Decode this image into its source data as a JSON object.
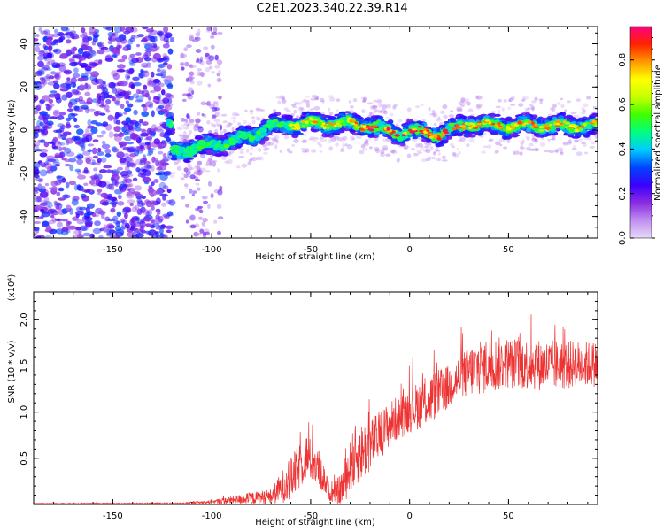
{
  "title": "C2E1.2023.340.22.39.R14",
  "chart_data": [
    {
      "type": "heatmap",
      "xlabel": "Height of straight line (km)",
      "ylabel": "Frequency (Hz)",
      "xlim": [
        -190,
        95
      ],
      "ylim": [
        -50,
        48
      ],
      "xticks": [
        -150,
        -100,
        -50,
        0,
        50
      ],
      "yticks": [
        -40,
        -20,
        0,
        20,
        40
      ],
      "colorbar": {
        "label": "Normalized spectral amplitude",
        "range": [
          0.0,
          0.95
        ],
        "ticks": [
          0.0,
          0.2,
          0.4,
          0.6,
          0.8
        ],
        "tick_labels": [
          "0.0",
          "0.2",
          "0.4",
          "0.6",
          "0.8"
        ],
        "colormap": [
          "#e8d8f8",
          "#c090f0",
          "#8a2be2",
          "#3a00ff",
          "#0044ff",
          "#00ccff",
          "#00ff80",
          "#40ff00",
          "#c8ff00",
          "#ffff00",
          "#ff9900",
          "#ff2200",
          "#ff0080"
        ]
      },
      "ridge_center_hz": [
        {
          "x": -120,
          "y": -10
        },
        {
          "x": -100,
          "y": -7
        },
        {
          "x": -80,
          "y": -3
        },
        {
          "x": -70,
          "y": 2
        },
        {
          "x": -55,
          "y": 3
        },
        {
          "x": -30,
          "y": 3
        },
        {
          "x": -15,
          "y": 1
        },
        {
          "x": -5,
          "y": -2
        },
        {
          "x": 0,
          "y": 0
        },
        {
          "x": 15,
          "y": -2
        },
        {
          "x": 30,
          "y": 3
        },
        {
          "x": 50,
          "y": 2
        },
        {
          "x": 70,
          "y": 2
        },
        {
          "x": 95,
          "y": 2
        }
      ]
    },
    {
      "type": "line",
      "xlabel": "Height of straight line (km)",
      "ylabel": "SNR (10 * v/v)",
      "y_multiplier": "(x10⁴)",
      "xlim": [
        -190,
        95
      ],
      "ylim": [
        0,
        2.3
      ],
      "xticks": [
        -150,
        -100,
        -50,
        0,
        50
      ],
      "yticks": [
        0.5,
        1.0,
        1.5,
        2.0
      ],
      "ytick_labels": [
        "0.5",
        "1.0",
        "1.5",
        "2.0"
      ],
      "color": "#ee3333",
      "envelope": [
        {
          "x": -190,
          "base": 0.01,
          "amp": 0.005
        },
        {
          "x": -115,
          "base": 0.01,
          "amp": 0.01
        },
        {
          "x": -100,
          "base": 0.02,
          "amp": 0.03
        },
        {
          "x": -85,
          "base": 0.04,
          "amp": 0.08
        },
        {
          "x": -70,
          "base": 0.06,
          "amp": 0.12
        },
        {
          "x": -60,
          "base": 0.2,
          "amp": 0.35
        },
        {
          "x": -52,
          "base": 0.45,
          "amp": 0.35
        },
        {
          "x": -45,
          "base": 0.3,
          "amp": 0.3
        },
        {
          "x": -40,
          "base": 0.08,
          "amp": 0.1
        },
        {
          "x": -35,
          "base": 0.1,
          "amp": 0.25
        },
        {
          "x": -28,
          "base": 0.4,
          "amp": 0.5
        },
        {
          "x": -20,
          "base": 0.55,
          "amp": 0.4
        },
        {
          "x": -10,
          "base": 0.8,
          "amp": 0.35
        },
        {
          "x": 0,
          "base": 0.95,
          "amp": 0.35
        },
        {
          "x": 10,
          "base": 1.05,
          "amp": 0.4
        },
        {
          "x": 20,
          "base": 1.2,
          "amp": 0.35
        },
        {
          "x": 25,
          "base": 1.3,
          "amp": 0.35
        },
        {
          "x": 35,
          "base": 1.4,
          "amp": 0.45
        },
        {
          "x": 50,
          "base": 1.45,
          "amp": 0.4
        },
        {
          "x": 70,
          "base": 1.42,
          "amp": 0.4
        },
        {
          "x": 95,
          "base": 1.45,
          "amp": 0.35
        }
      ]
    }
  ]
}
